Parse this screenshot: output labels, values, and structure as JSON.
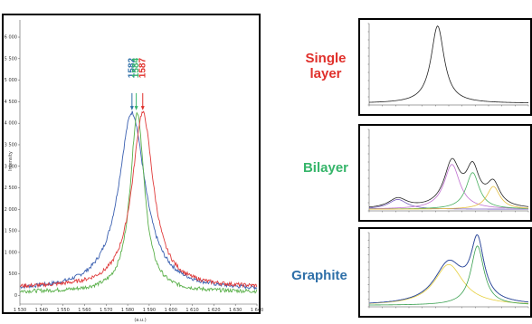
{
  "colors": {
    "single": "#e0302b",
    "bilayer": "#36b56a",
    "graphite": "#2e6fa8",
    "blue_curve": "#3a5fb0",
    "green_curve": "#5ab04a",
    "red_curve": "#e03b3b"
  },
  "labels": {
    "single": "Single layer",
    "bilayer": "Bilayer",
    "graphite": "Graphite"
  },
  "chart_data": [
    {
      "type": "line",
      "xlabel": "(a.u.)",
      "ylabel": "Intensity",
      "xlim": [
        1530,
        1640
      ],
      "ylim": [
        -200,
        6400
      ],
      "x_ticks": [
        "1 530",
        "1 540",
        "1 550",
        "1 560",
        "1 570",
        "1 580",
        "1 590",
        "1 600",
        "1 610",
        "1 620",
        "1 630",
        "1 640"
      ],
      "y_ticks": [
        "0",
        "500",
        "1 000",
        "1 500",
        "2 000",
        "2 500",
        "3 000",
        "3 500",
        "4 000",
        "4 500",
        "5 000",
        "5 500",
        "6 000"
      ],
      "y_tick_values": [
        0,
        500,
        1000,
        1500,
        2000,
        2500,
        3000,
        3500,
        4000,
        4500,
        5000,
        5500,
        6000
      ],
      "peak_labels": [
        {
          "text": "1582",
          "x": 1582,
          "color": "#2e6fa8"
        },
        {
          "text": "1584",
          "x": 1584,
          "color": "#36b56a"
        },
        {
          "text": "1587",
          "x": 1587,
          "color": "#e0302b"
        }
      ],
      "series": [
        {
          "color": "#3a5fb0",
          "center": 1582,
          "peak": 4250,
          "width": 7.5,
          "base": 120
        },
        {
          "color": "#5ab04a",
          "center": 1584.5,
          "peak": 4250,
          "width": 4.0,
          "base": 80
        },
        {
          "color": "#e03b3b",
          "center": 1587,
          "peak": 4250,
          "width": 6.0,
          "base": 180
        }
      ]
    },
    {
      "type": "line",
      "panel": "single",
      "series": [
        {
          "color": "#222222",
          "peaks": [
            {
              "c": 0.43,
              "h": 0.95,
              "w": 0.05
            }
          ]
        }
      ]
    },
    {
      "type": "line",
      "panel": "bilayer",
      "series": [
        {
          "color": "#222222",
          "peaks": [
            {
              "c": 0.18,
              "h": 0.12,
              "w": 0.07
            },
            {
              "c": 0.52,
              "h": 0.55,
              "w": 0.06
            },
            {
              "c": 0.65,
              "h": 0.45,
              "w": 0.05
            },
            {
              "c": 0.78,
              "h": 0.28,
              "w": 0.05
            }
          ]
        },
        {
          "color": "#7a5fc0",
          "peaks": [
            {
              "c": 0.18,
              "h": 0.12,
              "w": 0.07
            }
          ]
        },
        {
          "color": "#c070d0",
          "peaks": [
            {
              "c": 0.52,
              "h": 0.55,
              "w": 0.06
            }
          ]
        },
        {
          "color": "#4ab060",
          "peaks": [
            {
              "c": 0.65,
              "h": 0.45,
              "w": 0.05
            }
          ]
        },
        {
          "color": "#e6c040",
          "peaks": [
            {
              "c": 0.78,
              "h": 0.28,
              "w": 0.05
            }
          ]
        }
      ]
    },
    {
      "type": "line",
      "panel": "graphite",
      "series": [
        {
          "color": "#222222",
          "peaks": [
            {
              "c": 0.5,
              "h": 0.55,
              "w": 0.11
            },
            {
              "c": 0.68,
              "h": 0.8,
              "w": 0.05
            }
          ]
        },
        {
          "color": "#e6d040",
          "peaks": [
            {
              "c": 0.5,
              "h": 0.55,
              "w": 0.11
            }
          ]
        },
        {
          "color": "#3aa050",
          "peaks": [
            {
              "c": 0.68,
              "h": 0.8,
              "w": 0.05
            }
          ]
        },
        {
          "color": "#2e4fb0",
          "peaks": [
            {
              "c": 0.5,
              "h": 0.55,
              "w": 0.11
            },
            {
              "c": 0.68,
              "h": 0.8,
              "w": 0.05
            }
          ]
        }
      ]
    }
  ]
}
